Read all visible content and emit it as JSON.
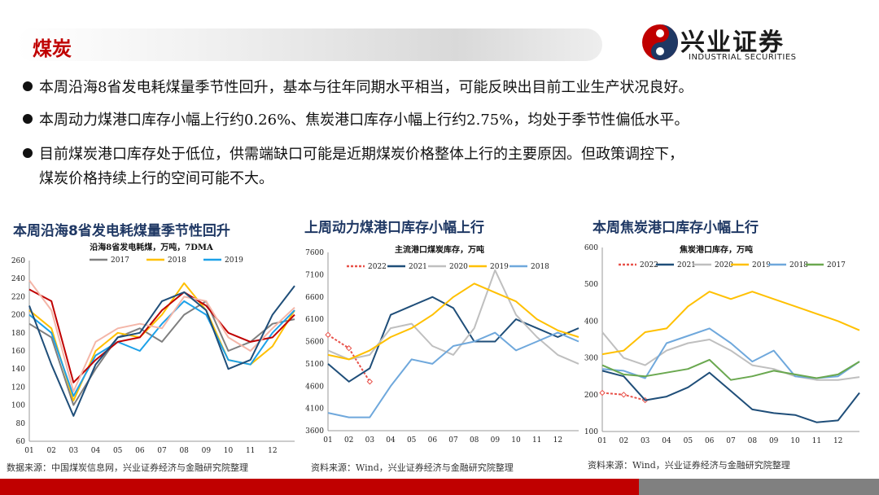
{
  "header": {
    "section_title": "煤炭"
  },
  "logo": {
    "cn": "兴业证券",
    "en": "INDUSTRIAL SECURITIES"
  },
  "bullets": [
    "本周沿海8省发电耗煤量季节性回升，基本与往年同期水平相当，可能反映出目前工业生产状况良好。",
    "本周动力煤港口库存小幅上行约0.26%、焦炭港口库存小幅上行约2.75%，均处于季节性偏低水平。",
    "目前煤炭港口库存处于低位，供需端缺口可能是近期煤炭价格整体上行的主要原因。但政策调控下，",
    "煤炭价格持续上行的空间可能不大。"
  ],
  "sources": {
    "left": "数据来源：中国煤炭信息网，兴业证券经济与金融研究院整理",
    "mid": "资料来源：Wind，兴业证券经济与金融研究院整理",
    "right": "资料来源：Wind，兴业证券经济与金融研究院整理"
  },
  "colors": {
    "brand_red": "#c00000",
    "title_blue": "#1f3864",
    "c2022": "#e8524a",
    "c2021": "#1f4e79",
    "c2020": "#bfbfbf",
    "c2019": "#ffc000",
    "c2018": "#6fa8dc",
    "c2017": "#6aa84f",
    "c2017_left": "#7f7f7f",
    "c2019_left": "#1da1e8",
    "other": "#f4b6a8"
  },
  "chart_data": [
    {
      "type": "line",
      "title": "本周沿海8省发电耗煤量季节性回升",
      "subtitle": "沿海8省发电耗煤，万吨，7DMA",
      "x_ticks": [
        "01",
        "02",
        "03",
        "04",
        "05",
        "06",
        "07",
        "08",
        "09",
        "10",
        "11",
        "12"
      ],
      "ylim": [
        60,
        260
      ],
      "y_ticks": [
        60,
        80,
        100,
        120,
        140,
        160,
        180,
        200,
        220,
        240,
        260
      ],
      "legend": "top",
      "series": [
        {
          "name": "2017",
          "color": "#7f7f7f",
          "values": [
            190,
            175,
            100,
            140,
            175,
            185,
            170,
            200,
            215,
            160,
            170,
            190,
            195
          ]
        },
        {
          "name": "2018",
          "color": "#ffc000",
          "values": [
            205,
            185,
            105,
            160,
            180,
            175,
            200,
            235,
            205,
            150,
            145,
            165,
            205
          ]
        },
        {
          "name": "2019",
          "color": "#1da1e8",
          "values": [
            200,
            180,
            110,
            155,
            170,
            160,
            190,
            215,
            200,
            150,
            145,
            180,
            205
          ]
        },
        {
          "name": "",
          "color": "#c00000",
          "values": [
            228,
            215,
            125,
            150,
            170,
            175,
            205,
            225,
            210,
            180,
            170,
            175,
            200
          ]
        },
        {
          "name": "",
          "color": "#f4b6a8",
          "values": [
            238,
            205,
            115,
            170,
            185,
            190,
            185,
            220,
            215,
            175,
            160,
            185,
            208
          ]
        },
        {
          "name": "",
          "color": "#1f4e79",
          "values": [
            210,
            145,
            88,
            145,
            175,
            180,
            215,
            225,
            205,
            140,
            150,
            200,
            232
          ]
        }
      ]
    },
    {
      "type": "line",
      "title": "上周动力煤港口库存小幅上行",
      "subtitle": "主流港口煤炭库存，万吨",
      "x_ticks": [
        "01",
        "02",
        "03",
        "04",
        "05",
        "06",
        "07",
        "08",
        "09",
        "10",
        "11",
        "12"
      ],
      "ylim": [
        3600,
        7600
      ],
      "y_ticks": [
        3600,
        4100,
        4600,
        5100,
        5600,
        6100,
        6600,
        7100,
        7600
      ],
      "legend": "top",
      "series": [
        {
          "name": "2022",
          "color": "#e8524a",
          "values": [
            5750,
            5450,
            4700
          ]
        },
        {
          "name": "2021",
          "color": "#1f4e79",
          "values": [
            5100,
            4700,
            5000,
            6200,
            6400,
            6600,
            6350,
            5600,
            5600,
            6100,
            5900,
            5700,
            5900
          ]
        },
        {
          "name": "2020",
          "color": "#bfbfbf",
          "values": [
            5400,
            5200,
            5300,
            5900,
            6000,
            5500,
            5300,
            5900,
            7200,
            6200,
            5700,
            5300,
            5100
          ]
        },
        {
          "name": "2019",
          "color": "#ffc000",
          "values": [
            5300,
            5200,
            5400,
            5700,
            5900,
            6200,
            6600,
            6900,
            6700,
            6500,
            6100,
            5850,
            5700
          ]
        },
        {
          "name": "2018",
          "color": "#6fa8dc",
          "values": [
            4000,
            3900,
            3900,
            4600,
            5200,
            5100,
            5500,
            5600,
            5800,
            5400,
            5600,
            5800,
            5600
          ]
        }
      ]
    },
    {
      "type": "line",
      "title": "本周焦炭港口库存小幅上行",
      "subtitle": "焦炭港口库存，万吨",
      "x_ticks": [
        "01",
        "02",
        "03",
        "04",
        "05",
        "06",
        "07",
        "08",
        "09",
        "10",
        "11",
        "12"
      ],
      "ylim": [
        100,
        600
      ],
      "y_ticks": [
        100,
        200,
        300,
        400,
        500,
        600
      ],
      "legend": "top",
      "series": [
        {
          "name": "2022",
          "color": "#e8524a",
          "values": [
            205,
            200,
            185
          ]
        },
        {
          "name": "2021",
          "color": "#1f4e79",
          "values": [
            265,
            250,
            185,
            195,
            220,
            260,
            210,
            160,
            150,
            145,
            125,
            130,
            205
          ]
        },
        {
          "name": "2020",
          "color": "#bfbfbf",
          "values": [
            370,
            300,
            280,
            320,
            340,
            350,
            320,
            280,
            270,
            250,
            240,
            240,
            248
          ]
        },
        {
          "name": "2019",
          "color": "#ffc000",
          "values": [
            310,
            320,
            370,
            380,
            440,
            480,
            460,
            480,
            460,
            440,
            420,
            400,
            375
          ]
        },
        {
          "name": "2018",
          "color": "#6fa8dc",
          "values": [
            270,
            265,
            245,
            340,
            360,
            380,
            340,
            290,
            320,
            250,
            245,
            250,
            290
          ]
        },
        {
          "name": "2017",
          "color": "#6aa84f",
          "values": [
            280,
            255,
            250,
            260,
            270,
            295,
            240,
            250,
            265,
            255,
            245,
            255,
            290
          ]
        }
      ]
    }
  ]
}
